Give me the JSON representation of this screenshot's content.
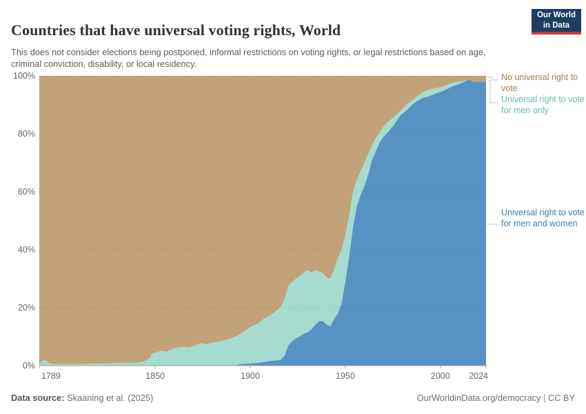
{
  "header": {
    "title": "Countries that have universal voting rights, World",
    "subtitle": "This does not consider elections being postponed, informal restrictions on voting rights, or legal restrictions based on age, criminal conviction, disability, or local residency.",
    "logo": {
      "line1": "Our World",
      "line2": "in Data"
    }
  },
  "legend": [
    {
      "id": "none",
      "label": "No universal right to vote",
      "color": "#a97c50"
    },
    {
      "id": "men_only",
      "label": "Universal right to vote for men only",
      "color": "#5fbdab"
    },
    {
      "id": "men_and_women",
      "label": "Universal right to vote for men and women",
      "color": "#3b7cb1"
    }
  ],
  "footer": {
    "datasource_label": "Data source:",
    "datasource_value": " Skaaning et al. (2025)",
    "link": "OurWorldinData.org/democracy",
    "separator": " | ",
    "license": "CC BY"
  },
  "chart_data": {
    "type": "area",
    "stacked": true,
    "unit": "% of countries",
    "title": "Countries that have universal voting rights, World",
    "xlabel": "Year",
    "ylabel": "Share of countries",
    "xlim": [
      1789,
      2024
    ],
    "ylim": [
      0,
      100
    ],
    "grid": "dashed-horizontal",
    "legend_position": "right",
    "x_ticks": [
      {
        "value": 1789,
        "label": "1789"
      },
      {
        "value": 1850,
        "label": "1850"
      },
      {
        "value": 1900,
        "label": "1900"
      },
      {
        "value": 1950,
        "label": "1950"
      },
      {
        "value": 2000,
        "label": "2000"
      },
      {
        "value": 2024,
        "label": "2024"
      }
    ],
    "y_ticks": [
      {
        "value": 0,
        "label": "0%"
      },
      {
        "value": 20,
        "label": "20%"
      },
      {
        "value": 40,
        "label": "40%"
      },
      {
        "value": 60,
        "label": "60%"
      },
      {
        "value": 80,
        "label": "80%"
      },
      {
        "value": 100,
        "label": "100%"
      }
    ],
    "x": [
      1789,
      1790,
      1792,
      1794,
      1796,
      1800,
      1805,
      1810,
      1815,
      1820,
      1825,
      1830,
      1835,
      1840,
      1844,
      1847,
      1848,
      1850,
      1853,
      1856,
      1859,
      1862,
      1865,
      1868,
      1871,
      1874,
      1877,
      1880,
      1883,
      1886,
      1889,
      1892,
      1895,
      1898,
      1901,
      1904,
      1907,
      1910,
      1913,
      1916,
      1918,
      1920,
      1922,
      1924,
      1926,
      1928,
      1930,
      1932,
      1934,
      1936,
      1938,
      1940,
      1942,
      1944,
      1946,
      1948,
      1950,
      1952,
      1954,
      1956,
      1958,
      1960,
      1962,
      1964,
      1966,
      1968,
      1970,
      1973,
      1976,
      1979,
      1982,
      1985,
      1988,
      1991,
      1994,
      1997,
      2000,
      2003,
      2006,
      2009,
      2012,
      2015,
      2017,
      2020,
      2024
    ],
    "series": [
      {
        "id": "men_and_women",
        "name": "Universal right to vote for men and women",
        "color": "#5693c4",
        "values": [
          0,
          0,
          0,
          0,
          0,
          0,
          0,
          0,
          0,
          0,
          0,
          0,
          0,
          0,
          0,
          0,
          0,
          0,
          0,
          0,
          0,
          0,
          0,
          0,
          0,
          0,
          0,
          0,
          0,
          0,
          0,
          0,
          0.6,
          0.7,
          0.8,
          1,
          1.3,
          1.6,
          1.8,
          2,
          3.5,
          7,
          8.5,
          9.5,
          10.2,
          11,
          11.5,
          12.5,
          14,
          15.3,
          15.5,
          14.3,
          13.6,
          16,
          18,
          21.5,
          29,
          38,
          48,
          55,
          59,
          62,
          66,
          71,
          74,
          77,
          79,
          81,
          83.5,
          86.5,
          88,
          90,
          91.5,
          92.5,
          93,
          93.8,
          94.5,
          95.3,
          96.3,
          97,
          97.8,
          98.8,
          98,
          98,
          98
        ]
      },
      {
        "id": "men_only",
        "name": "Universal right to vote for men only",
        "color": "#a5dbcf",
        "values": [
          0,
          1.5,
          2,
          1,
          0.5,
          0.5,
          0.5,
          0.5,
          0.6,
          0.7,
          0.8,
          1,
          1,
          1,
          1.5,
          2.5,
          4,
          4.5,
          5.2,
          4.8,
          5.8,
          6.3,
          6.5,
          6.3,
          7,
          7.8,
          7.4,
          8,
          8.3,
          8.7,
          9.3,
          10,
          10.4,
          11.8,
          12.9,
          13.5,
          14.9,
          15.6,
          16.7,
          18.3,
          19.5,
          20.5,
          20.5,
          20.5,
          20.8,
          21,
          21.5,
          19.5,
          19,
          17.2,
          16.5,
          16.2,
          16.4,
          17,
          19,
          18.5,
          16,
          14,
          12,
          9,
          8,
          8,
          7,
          5,
          4.5,
          3.5,
          3.5,
          3.5,
          2.5,
          1.5,
          2,
          1.5,
          1.5,
          2,
          2.2,
          2,
          1.5,
          1.4,
          1.3,
          1,
          0.4,
          0,
          0,
          0,
          0
        ]
      },
      {
        "id": "none",
        "name": "No universal right to vote",
        "color": "#c2a278",
        "remainder_to": 100
      }
    ]
  }
}
